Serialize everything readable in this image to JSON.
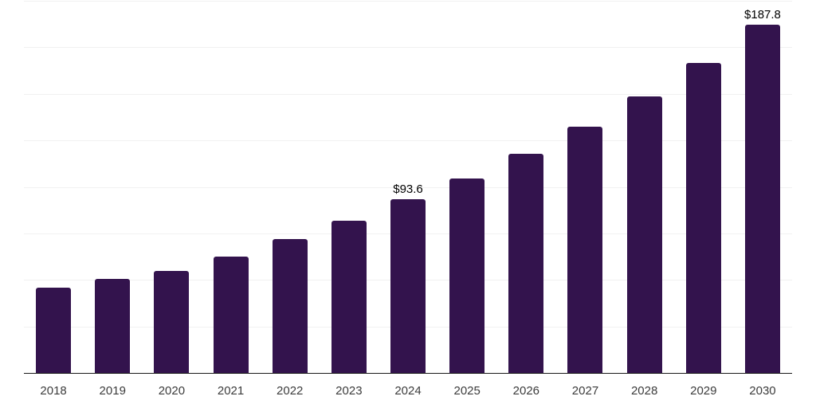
{
  "chart_data": {
    "type": "bar",
    "title": "",
    "xlabel": "",
    "ylabel": "",
    "categories": [
      "2018",
      "2019",
      "2020",
      "2021",
      "2022",
      "2023",
      "2024",
      "2025",
      "2026",
      "2027",
      "2028",
      "2029",
      "2030"
    ],
    "values": [
      46.4,
      51.1,
      55.4,
      63.1,
      72.5,
      82.4,
      93.6,
      105.1,
      118.0,
      132.6,
      148.9,
      167.2,
      187.8
    ],
    "annotations": [
      {
        "category": "2024",
        "text": "$93.6"
      },
      {
        "category": "2030",
        "text": "$187.8"
      }
    ],
    "ylim": [
      0,
      200
    ],
    "grid_interval": 25,
    "grid": true,
    "legend": false,
    "colors": {
      "bar": "#33134D",
      "grid": "#F1F1F1",
      "axis": "#1A1A1A",
      "tick_label": "#3C3C3C",
      "value_label": "#000000",
      "background": "#FFFFFF"
    }
  }
}
